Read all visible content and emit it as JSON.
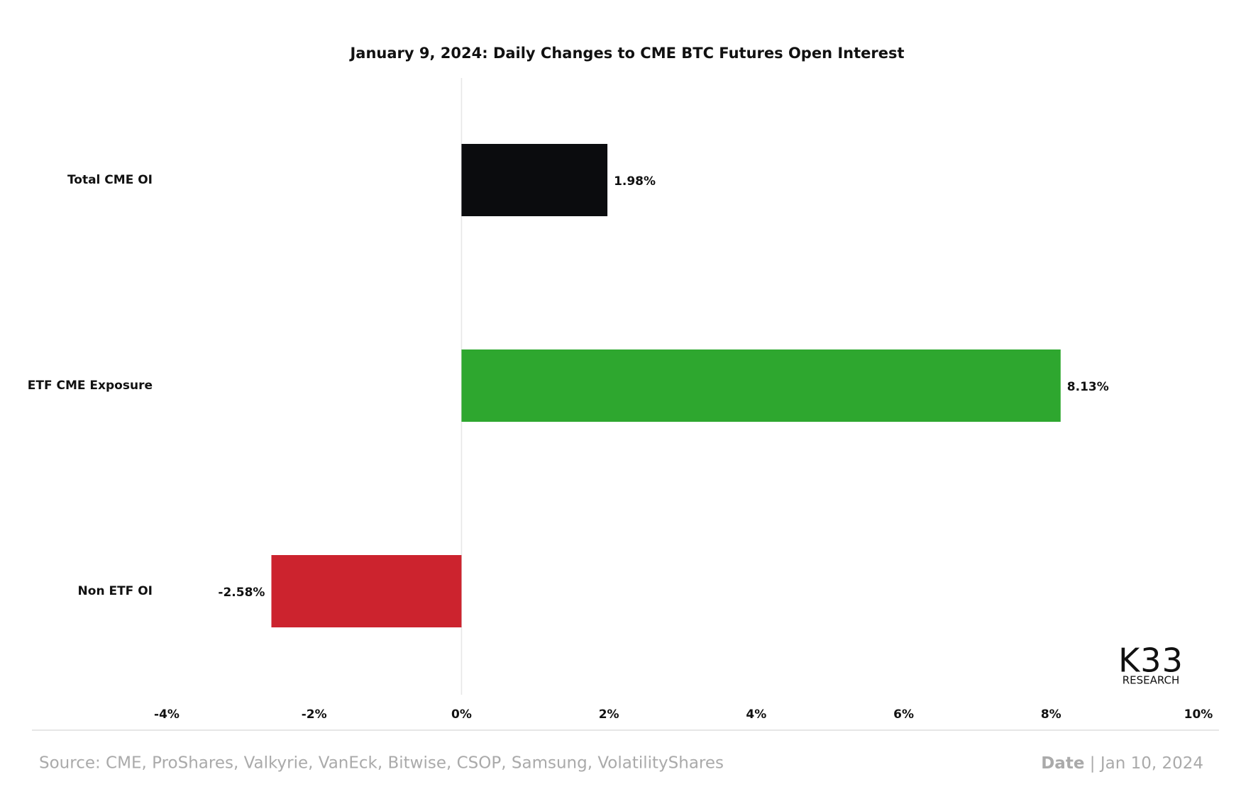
{
  "chart_data": {
    "type": "bar",
    "orientation": "horizontal",
    "title": "January 9, 2024: Daily Changes to CME BTC Futures Open Interest",
    "categories": [
      "Total CME OI",
      "ETF CME Exposure",
      "Non ETF OI"
    ],
    "values": [
      1.98,
      8.13,
      -2.58
    ],
    "value_labels": [
      "1.98%",
      "8.13%",
      "-2.58%"
    ],
    "colors": [
      "#0b0c0e",
      "#2ea72f",
      "#cc232e"
    ],
    "xlim": [
      -4,
      10
    ],
    "xticks": [
      {
        "value": -4,
        "label": "-4%"
      },
      {
        "value": -2,
        "label": "-2%"
      },
      {
        "value": 0,
        "label": "0%"
      },
      {
        "value": 2,
        "label": "2%"
      },
      {
        "value": 4,
        "label": "4%"
      },
      {
        "value": 6,
        "label": "6%"
      },
      {
        "value": 8,
        "label": "8%"
      },
      {
        "value": 10,
        "label": "10%"
      }
    ],
    "zero_line": true
  },
  "logo": {
    "mark": "K33",
    "sub": "RESEARCH"
  },
  "footer": {
    "source": "Source: CME, ProShares, Valkyrie, VanEck, Bitwise, CSOP, Samsung, VolatilityShares",
    "date_label": "Date",
    "date_value": "Jan 10, 2024"
  }
}
